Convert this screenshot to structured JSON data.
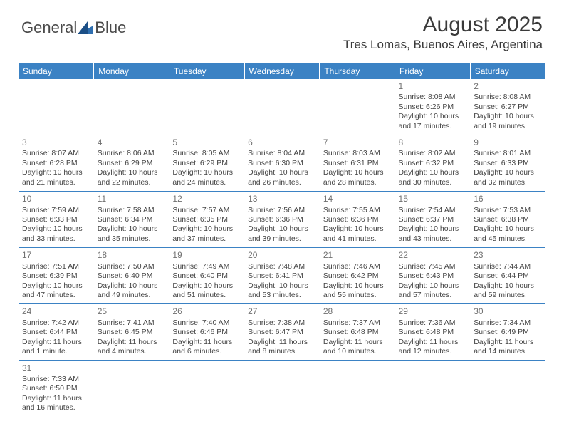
{
  "logo": {
    "part1": "General",
    "part2": "Blue"
  },
  "title": "August 2025",
  "location": "Tres Lomas, Buenos Aires, Argentina",
  "header_bg": "#3b82c4",
  "header_fg": "#ffffff",
  "daynum_color": "#707070",
  "cell_text_color": "#444444",
  "border_color": "#3b82c4",
  "weekdays": [
    "Sunday",
    "Monday",
    "Tuesday",
    "Wednesday",
    "Thursday",
    "Friday",
    "Saturday"
  ],
  "weeks": [
    [
      null,
      null,
      null,
      null,
      null,
      {
        "n": "1",
        "sr": "Sunrise: 8:08 AM",
        "ss": "Sunset: 6:26 PM",
        "d1": "Daylight: 10 hours",
        "d2": "and 17 minutes."
      },
      {
        "n": "2",
        "sr": "Sunrise: 8:08 AM",
        "ss": "Sunset: 6:27 PM",
        "d1": "Daylight: 10 hours",
        "d2": "and 19 minutes."
      }
    ],
    [
      {
        "n": "3",
        "sr": "Sunrise: 8:07 AM",
        "ss": "Sunset: 6:28 PM",
        "d1": "Daylight: 10 hours",
        "d2": "and 21 minutes."
      },
      {
        "n": "4",
        "sr": "Sunrise: 8:06 AM",
        "ss": "Sunset: 6:29 PM",
        "d1": "Daylight: 10 hours",
        "d2": "and 22 minutes."
      },
      {
        "n": "5",
        "sr": "Sunrise: 8:05 AM",
        "ss": "Sunset: 6:29 PM",
        "d1": "Daylight: 10 hours",
        "d2": "and 24 minutes."
      },
      {
        "n": "6",
        "sr": "Sunrise: 8:04 AM",
        "ss": "Sunset: 6:30 PM",
        "d1": "Daylight: 10 hours",
        "d2": "and 26 minutes."
      },
      {
        "n": "7",
        "sr": "Sunrise: 8:03 AM",
        "ss": "Sunset: 6:31 PM",
        "d1": "Daylight: 10 hours",
        "d2": "and 28 minutes."
      },
      {
        "n": "8",
        "sr": "Sunrise: 8:02 AM",
        "ss": "Sunset: 6:32 PM",
        "d1": "Daylight: 10 hours",
        "d2": "and 30 minutes."
      },
      {
        "n": "9",
        "sr": "Sunrise: 8:01 AM",
        "ss": "Sunset: 6:33 PM",
        "d1": "Daylight: 10 hours",
        "d2": "and 32 minutes."
      }
    ],
    [
      {
        "n": "10",
        "sr": "Sunrise: 7:59 AM",
        "ss": "Sunset: 6:33 PM",
        "d1": "Daylight: 10 hours",
        "d2": "and 33 minutes."
      },
      {
        "n": "11",
        "sr": "Sunrise: 7:58 AM",
        "ss": "Sunset: 6:34 PM",
        "d1": "Daylight: 10 hours",
        "d2": "and 35 minutes."
      },
      {
        "n": "12",
        "sr": "Sunrise: 7:57 AM",
        "ss": "Sunset: 6:35 PM",
        "d1": "Daylight: 10 hours",
        "d2": "and 37 minutes."
      },
      {
        "n": "13",
        "sr": "Sunrise: 7:56 AM",
        "ss": "Sunset: 6:36 PM",
        "d1": "Daylight: 10 hours",
        "d2": "and 39 minutes."
      },
      {
        "n": "14",
        "sr": "Sunrise: 7:55 AM",
        "ss": "Sunset: 6:36 PM",
        "d1": "Daylight: 10 hours",
        "d2": "and 41 minutes."
      },
      {
        "n": "15",
        "sr": "Sunrise: 7:54 AM",
        "ss": "Sunset: 6:37 PM",
        "d1": "Daylight: 10 hours",
        "d2": "and 43 minutes."
      },
      {
        "n": "16",
        "sr": "Sunrise: 7:53 AM",
        "ss": "Sunset: 6:38 PM",
        "d1": "Daylight: 10 hours",
        "d2": "and 45 minutes."
      }
    ],
    [
      {
        "n": "17",
        "sr": "Sunrise: 7:51 AM",
        "ss": "Sunset: 6:39 PM",
        "d1": "Daylight: 10 hours",
        "d2": "and 47 minutes."
      },
      {
        "n": "18",
        "sr": "Sunrise: 7:50 AM",
        "ss": "Sunset: 6:40 PM",
        "d1": "Daylight: 10 hours",
        "d2": "and 49 minutes."
      },
      {
        "n": "19",
        "sr": "Sunrise: 7:49 AM",
        "ss": "Sunset: 6:40 PM",
        "d1": "Daylight: 10 hours",
        "d2": "and 51 minutes."
      },
      {
        "n": "20",
        "sr": "Sunrise: 7:48 AM",
        "ss": "Sunset: 6:41 PM",
        "d1": "Daylight: 10 hours",
        "d2": "and 53 minutes."
      },
      {
        "n": "21",
        "sr": "Sunrise: 7:46 AM",
        "ss": "Sunset: 6:42 PM",
        "d1": "Daylight: 10 hours",
        "d2": "and 55 minutes."
      },
      {
        "n": "22",
        "sr": "Sunrise: 7:45 AM",
        "ss": "Sunset: 6:43 PM",
        "d1": "Daylight: 10 hours",
        "d2": "and 57 minutes."
      },
      {
        "n": "23",
        "sr": "Sunrise: 7:44 AM",
        "ss": "Sunset: 6:44 PM",
        "d1": "Daylight: 10 hours",
        "d2": "and 59 minutes."
      }
    ],
    [
      {
        "n": "24",
        "sr": "Sunrise: 7:42 AM",
        "ss": "Sunset: 6:44 PM",
        "d1": "Daylight: 11 hours",
        "d2": "and 1 minute."
      },
      {
        "n": "25",
        "sr": "Sunrise: 7:41 AM",
        "ss": "Sunset: 6:45 PM",
        "d1": "Daylight: 11 hours",
        "d2": "and 4 minutes."
      },
      {
        "n": "26",
        "sr": "Sunrise: 7:40 AM",
        "ss": "Sunset: 6:46 PM",
        "d1": "Daylight: 11 hours",
        "d2": "and 6 minutes."
      },
      {
        "n": "27",
        "sr": "Sunrise: 7:38 AM",
        "ss": "Sunset: 6:47 PM",
        "d1": "Daylight: 11 hours",
        "d2": "and 8 minutes."
      },
      {
        "n": "28",
        "sr": "Sunrise: 7:37 AM",
        "ss": "Sunset: 6:48 PM",
        "d1": "Daylight: 11 hours",
        "d2": "and 10 minutes."
      },
      {
        "n": "29",
        "sr": "Sunrise: 7:36 AM",
        "ss": "Sunset: 6:48 PM",
        "d1": "Daylight: 11 hours",
        "d2": "and 12 minutes."
      },
      {
        "n": "30",
        "sr": "Sunrise: 7:34 AM",
        "ss": "Sunset: 6:49 PM",
        "d1": "Daylight: 11 hours",
        "d2": "and 14 minutes."
      }
    ],
    [
      {
        "n": "31",
        "sr": "Sunrise: 7:33 AM",
        "ss": "Sunset: 6:50 PM",
        "d1": "Daylight: 11 hours",
        "d2": "and 16 minutes."
      },
      null,
      null,
      null,
      null,
      null,
      null
    ]
  ]
}
